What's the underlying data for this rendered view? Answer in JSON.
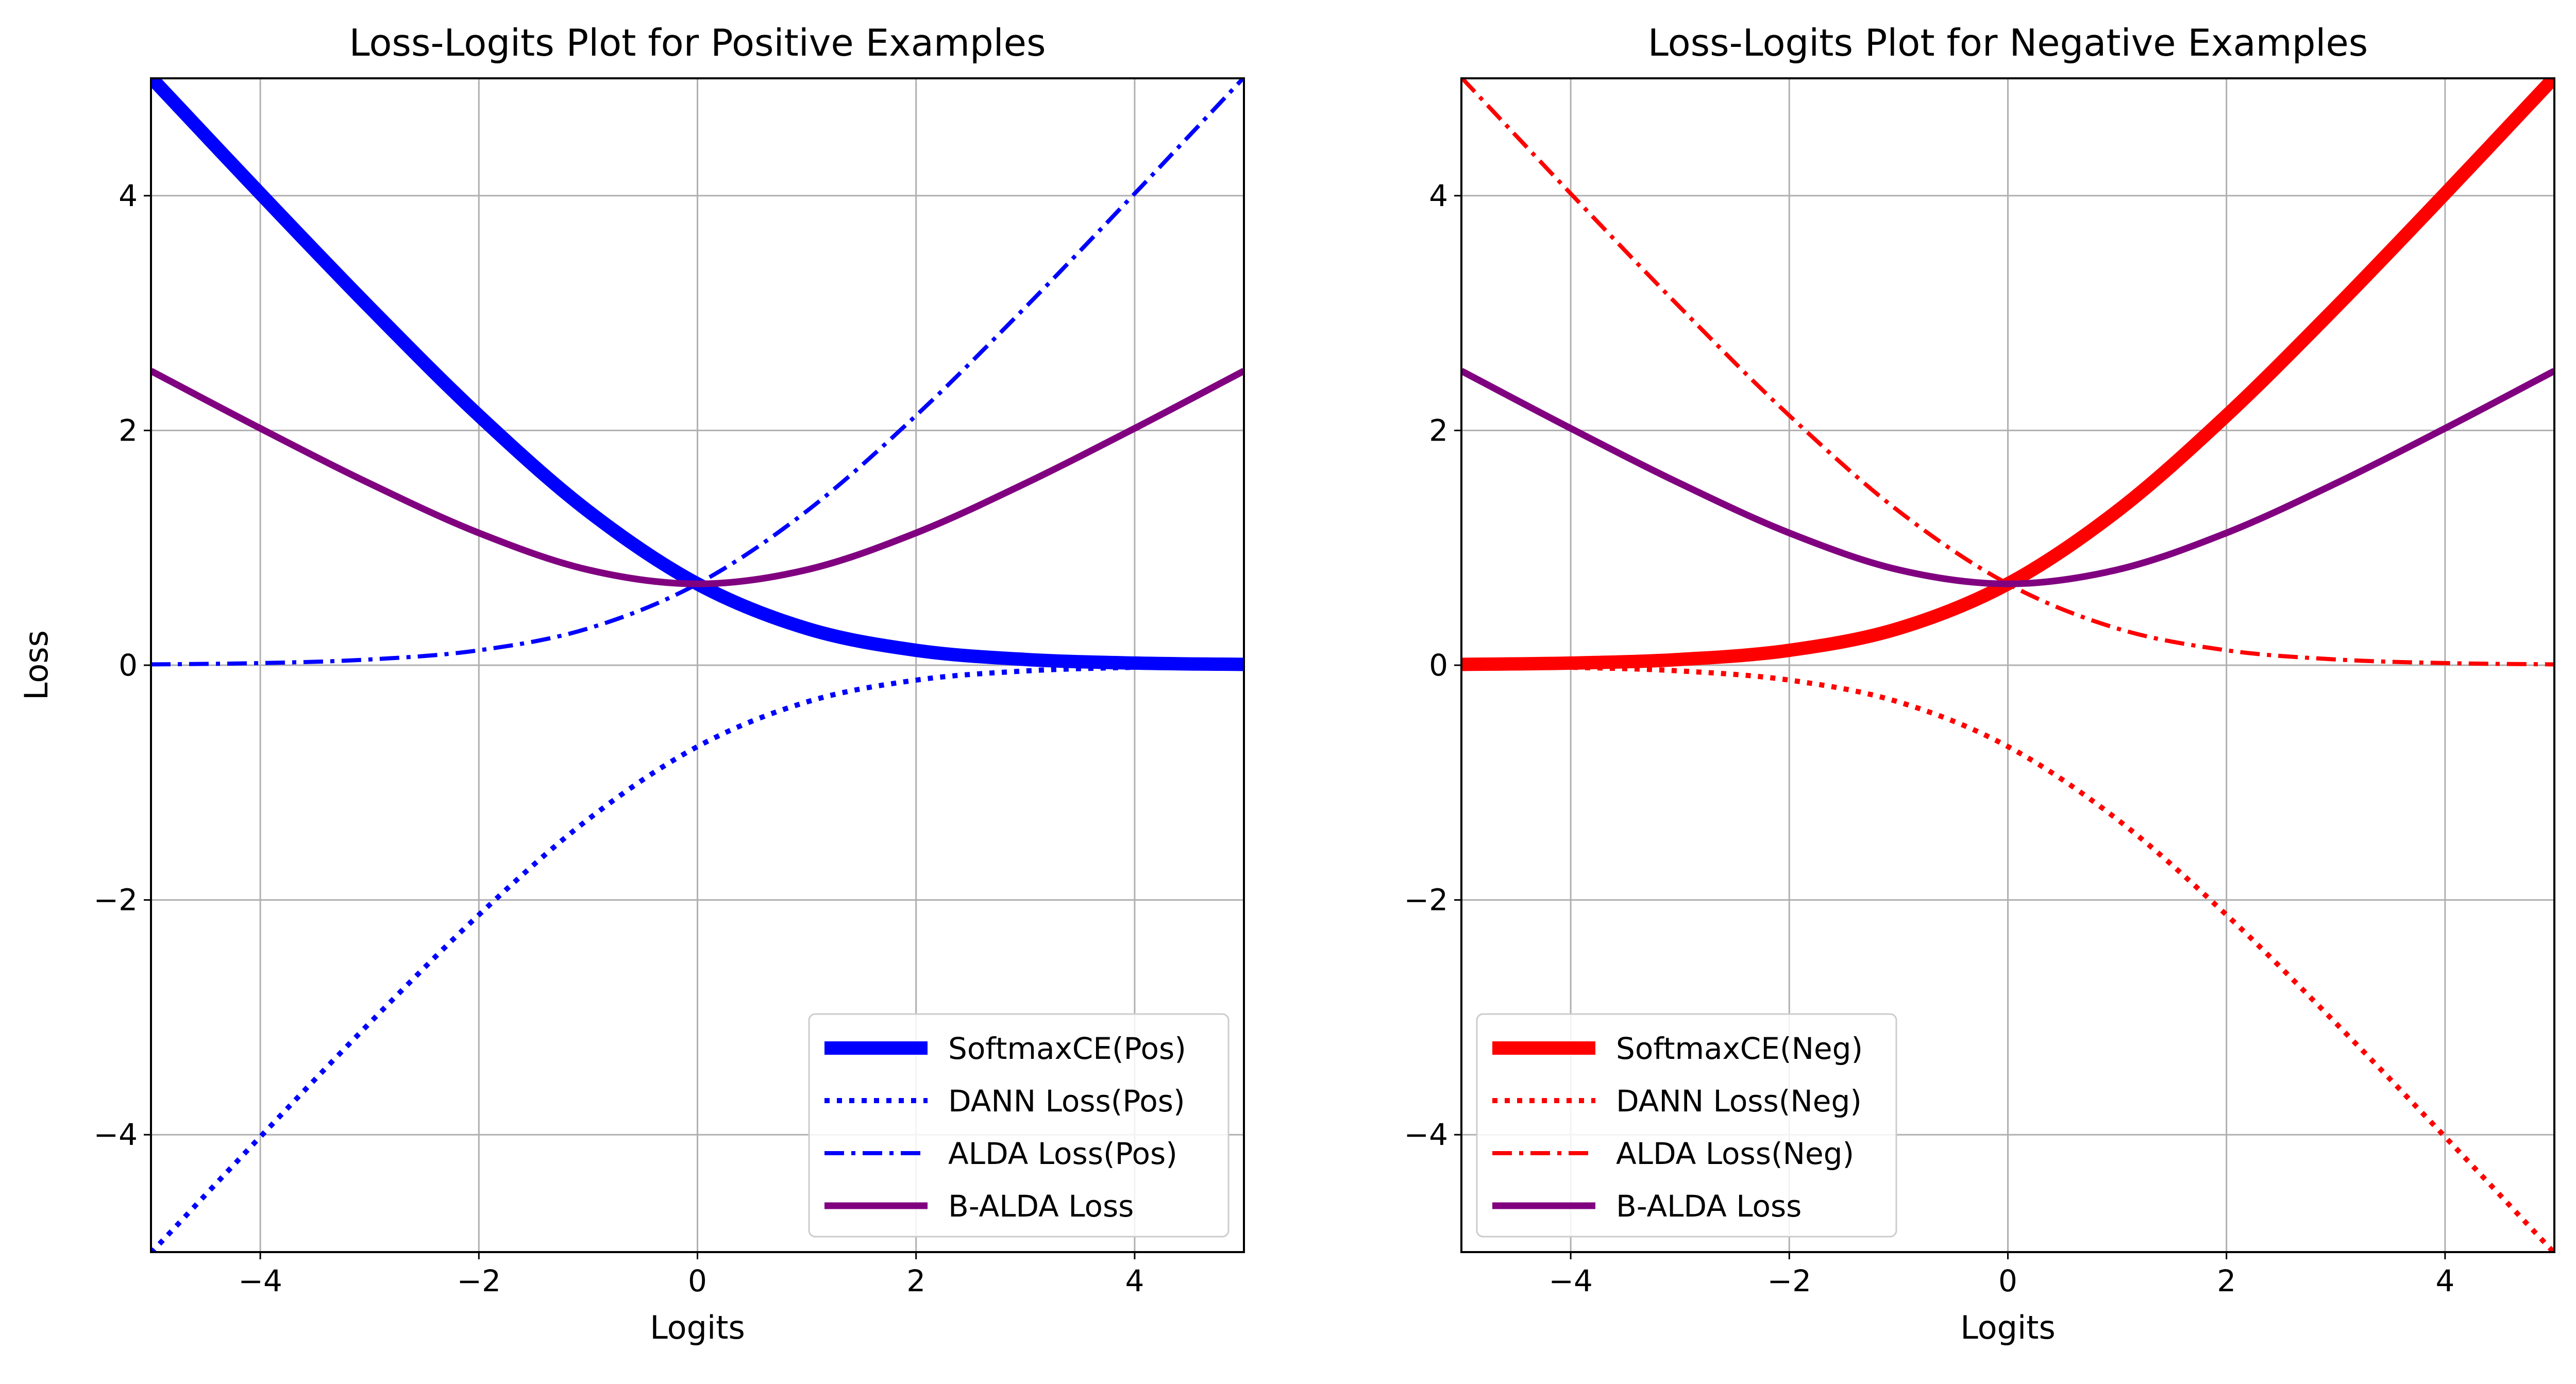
{
  "chart_data": [
    {
      "type": "line",
      "title": "Loss-Logits Plot for Positive Examples",
      "xlabel": "Logits",
      "ylabel": "Loss",
      "xlim": [
        -5,
        5
      ],
      "ylim": [
        -5,
        5
      ],
      "xticks": [
        -4,
        -2,
        0,
        2,
        4
      ],
      "yticks": [
        -4,
        -2,
        0,
        2,
        4
      ],
      "xtick_labels": [
        "−4",
        "−2",
        "0",
        "2",
        "4"
      ],
      "ytick_labels": [
        "−4",
        "−2",
        "0",
        "2",
        "4"
      ],
      "grid": true,
      "legend_position": "lower-right",
      "x": [
        -5,
        -4,
        -3,
        -2,
        -1,
        0,
        1,
        2,
        3,
        4,
        5
      ],
      "series": [
        {
          "name": "SoftmaxCE(Pos)",
          "color": "#0000ff",
          "style": "solid-thick",
          "values": [
            5.007,
            4.018,
            3.049,
            2.127,
            1.313,
            0.693,
            0.313,
            0.127,
            0.049,
            0.018,
            0.007
          ]
        },
        {
          "name": "DANN Loss(Pos)",
          "color": "#0000ff",
          "style": "dotted",
          "values": [
            -5.007,
            -4.018,
            -3.049,
            -2.127,
            -1.313,
            -0.693,
            -0.313,
            -0.127,
            -0.049,
            -0.018,
            -0.007
          ]
        },
        {
          "name": "ALDA Loss(Pos)",
          "color": "#0000ff",
          "style": "dash-dot",
          "values": [
            0.007,
            0.018,
            0.049,
            0.127,
            0.313,
            0.693,
            1.313,
            2.127,
            3.049,
            4.018,
            5.007
          ]
        },
        {
          "name": "B-ALDA Loss",
          "color": "#800080",
          "style": "solid",
          "values": [
            2.507,
            2.018,
            1.549,
            1.127,
            0.813,
            0.693,
            0.813,
            1.127,
            1.549,
            2.018,
            2.507
          ]
        }
      ]
    },
    {
      "type": "line",
      "title": "Loss-Logits Plot for Negative Examples",
      "xlabel": "Logits",
      "ylabel": "",
      "xlim": [
        -5,
        5
      ],
      "ylim": [
        -5,
        5
      ],
      "xticks": [
        -4,
        -2,
        0,
        2,
        4
      ],
      "yticks": [
        -4,
        -2,
        0,
        2,
        4
      ],
      "xtick_labels": [
        "−4",
        "−2",
        "0",
        "2",
        "4"
      ],
      "ytick_labels": [
        "−4",
        "−2",
        "0",
        "2",
        "4"
      ],
      "grid": true,
      "legend_position": "lower-left",
      "x": [
        -5,
        -4,
        -3,
        -2,
        -1,
        0,
        1,
        2,
        3,
        4,
        5
      ],
      "series": [
        {
          "name": "SoftmaxCE(Neg)",
          "color": "#ff0000",
          "style": "solid-thick",
          "values": [
            0.007,
            0.018,
            0.049,
            0.127,
            0.313,
            0.693,
            1.313,
            2.127,
            3.049,
            4.018,
            5.007
          ]
        },
        {
          "name": "DANN Loss(Neg)",
          "color": "#ff0000",
          "style": "dotted",
          "values": [
            -0.007,
            -0.018,
            -0.049,
            -0.127,
            -0.313,
            -0.693,
            -1.313,
            -2.127,
            -3.049,
            -4.018,
            -5.007
          ]
        },
        {
          "name": "ALDA Loss(Neg)",
          "color": "#ff0000",
          "style": "dash-dot",
          "values": [
            5.007,
            4.018,
            3.049,
            2.127,
            1.313,
            0.693,
            0.313,
            0.127,
            0.049,
            0.018,
            0.007
          ]
        },
        {
          "name": "B-ALDA Loss",
          "color": "#800080",
          "style": "solid",
          "values": [
            2.507,
            2.018,
            1.549,
            1.127,
            0.813,
            0.693,
            0.813,
            1.127,
            1.549,
            2.018,
            2.507
          ]
        }
      ]
    }
  ]
}
